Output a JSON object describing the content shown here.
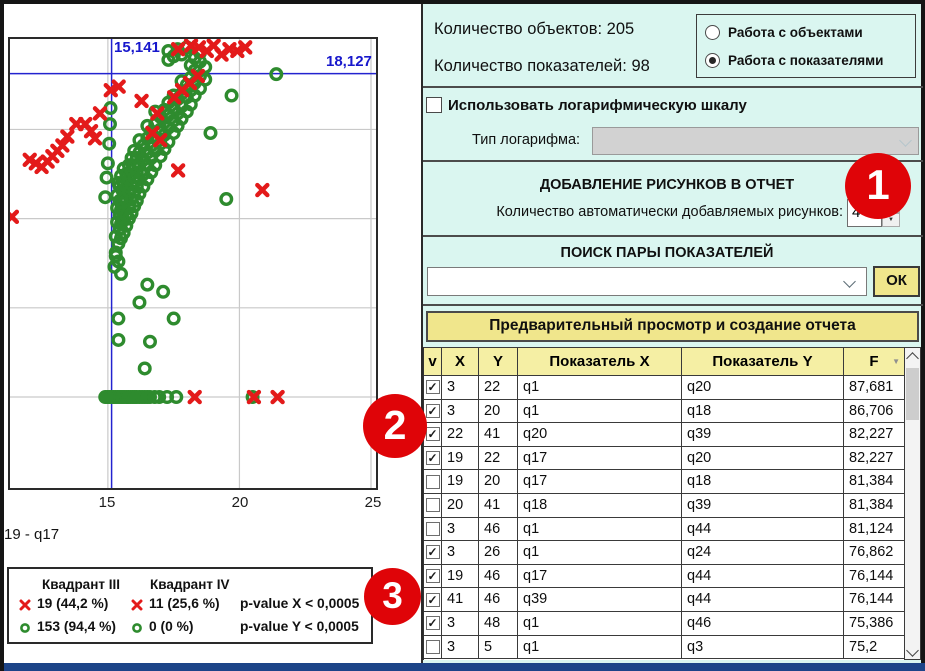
{
  "chart": {
    "crosshair_x_label": "15,141",
    "crosshair_y_label": "18,127",
    "x_tick_labels": [
      "15",
      "20",
      "25"
    ],
    "title": "19 - q17"
  },
  "chart_data": {
    "type": "scatter",
    "title": "19 - q17",
    "xlim": [
      11.28,
      25.19
    ],
    "ylim": [
      -5.1,
      20.07
    ],
    "x_ticks": [
      15,
      20,
      25
    ],
    "y_gridlines": [
      0,
      5,
      10,
      15
    ],
    "grid": true,
    "crosshair": {
      "x": 15.141,
      "y": 18.127
    },
    "colors": {
      "red": "#e31a1a",
      "green": "#2e8b2e",
      "crosshair": "#2323cf",
      "grid": "#c9c9c9"
    },
    "series": [
      {
        "name": "green-circles",
        "marker": "o",
        "color": "#2e8b2e",
        "points": [
          [
            15.25,
            7.3
          ],
          [
            15.3,
            8.1
          ],
          [
            15.3,
            9.0
          ],
          [
            15.35,
            9.8
          ],
          [
            15.35,
            10.6
          ],
          [
            15.35,
            11.3
          ],
          [
            15.4,
            7.6
          ],
          [
            15.4,
            8.6
          ],
          [
            15.4,
            12.0
          ],
          [
            15.45,
            9.4
          ],
          [
            15.45,
            10.2
          ],
          [
            15.45,
            11.0
          ],
          [
            15.45,
            11.8
          ],
          [
            15.5,
            8.9
          ],
          [
            15.5,
            9.7
          ],
          [
            15.5,
            10.5
          ],
          [
            15.5,
            12.4
          ],
          [
            15.55,
            10.0
          ],
          [
            15.55,
            10.9
          ],
          [
            15.55,
            11.6
          ],
          [
            15.6,
            9.2
          ],
          [
            15.6,
            10.4
          ],
          [
            15.6,
            11.2
          ],
          [
            15.6,
            12.0
          ],
          [
            15.6,
            12.8
          ],
          [
            15.7,
            9.6
          ],
          [
            15.7,
            10.2
          ],
          [
            15.7,
            11.0
          ],
          [
            15.7,
            11.8
          ],
          [
            15.7,
            12.5
          ],
          [
            15.8,
            10.0
          ],
          [
            15.8,
            10.7
          ],
          [
            15.8,
            11.5
          ],
          [
            15.8,
            12.2
          ],
          [
            15.8,
            13.0
          ],
          [
            15.9,
            10.3
          ],
          [
            15.9,
            11.1
          ],
          [
            15.9,
            11.9
          ],
          [
            15.9,
            12.7
          ],
          [
            15.9,
            13.4
          ],
          [
            16.0,
            10.7
          ],
          [
            16.0,
            11.5
          ],
          [
            16.0,
            12.3
          ],
          [
            16.0,
            13.0
          ],
          [
            16.0,
            13.8
          ],
          [
            16.1,
            11.0
          ],
          [
            16.1,
            11.8
          ],
          [
            16.1,
            12.6
          ],
          [
            16.1,
            13.4
          ],
          [
            16.2,
            11.4
          ],
          [
            16.2,
            12.2
          ],
          [
            16.2,
            13.0
          ],
          [
            16.2,
            13.7
          ],
          [
            16.2,
            14.4
          ],
          [
            16.35,
            11.8
          ],
          [
            16.35,
            12.5
          ],
          [
            16.35,
            13.3
          ],
          [
            16.35,
            14.1
          ],
          [
            16.5,
            12.2
          ],
          [
            16.5,
            13.0
          ],
          [
            16.5,
            13.7
          ],
          [
            16.5,
            14.5
          ],
          [
            16.5,
            15.2
          ],
          [
            16.65,
            12.6
          ],
          [
            16.65,
            13.4
          ],
          [
            16.65,
            14.1
          ],
          [
            16.65,
            14.9
          ],
          [
            16.8,
            13.0
          ],
          [
            16.8,
            13.8
          ],
          [
            16.8,
            14.5
          ],
          [
            16.8,
            15.3
          ],
          [
            16.8,
            16.0
          ],
          [
            17.0,
            13.5
          ],
          [
            17.0,
            14.2
          ],
          [
            17.0,
            15.0
          ],
          [
            17.0,
            15.7
          ],
          [
            17.15,
            13.9
          ],
          [
            17.15,
            14.7
          ],
          [
            17.15,
            15.4
          ],
          [
            17.15,
            16.1
          ],
          [
            17.3,
            14.3
          ],
          [
            17.3,
            15.1
          ],
          [
            17.3,
            15.8
          ],
          [
            17.3,
            16.5
          ],
          [
            17.3,
            18.9
          ],
          [
            17.3,
            19.4
          ],
          [
            17.5,
            14.8
          ],
          [
            17.5,
            15.5
          ],
          [
            17.5,
            16.2
          ],
          [
            17.5,
            16.9
          ],
          [
            17.5,
            19.1
          ],
          [
            17.65,
            15.2
          ],
          [
            17.65,
            15.9
          ],
          [
            17.65,
            16.7
          ],
          [
            17.65,
            19.5
          ],
          [
            17.8,
            15.6
          ],
          [
            17.8,
            16.3
          ],
          [
            17.8,
            17.0
          ],
          [
            17.8,
            17.7
          ],
          [
            17.8,
            19.2
          ],
          [
            18.0,
            16.0
          ],
          [
            18.0,
            16.8
          ],
          [
            18.0,
            17.5
          ],
          [
            18.0,
            19.6
          ],
          [
            18.15,
            16.4
          ],
          [
            18.15,
            17.2
          ],
          [
            18.15,
            17.9
          ],
          [
            18.15,
            18.6
          ],
          [
            18.3,
            16.9
          ],
          [
            18.3,
            17.6
          ],
          [
            18.3,
            18.3
          ],
          [
            18.3,
            19.0
          ],
          [
            18.5,
            17.3
          ],
          [
            18.5,
            18.0
          ],
          [
            18.5,
            18.8
          ],
          [
            18.5,
            19.3
          ],
          [
            18.7,
            17.8
          ],
          [
            18.7,
            18.5
          ],
          [
            18.9,
            14.8
          ],
          [
            19.5,
            11.1
          ],
          [
            19.7,
            16.9
          ],
          [
            21.4,
            18.1
          ],
          [
            14.95,
            12.3
          ],
          [
            15.0,
            13.1
          ],
          [
            15.05,
            14.2
          ],
          [
            14.9,
            11.2
          ],
          [
            15.08,
            15.3
          ],
          [
            15.1,
            16.2
          ],
          [
            15.3,
            7.9
          ],
          [
            15.5,
            6.9
          ],
          [
            16.5,
            6.3
          ],
          [
            17.1,
            5.9
          ],
          [
            16.2,
            5.3
          ],
          [
            15.4,
            4.4
          ],
          [
            17.5,
            4.4
          ],
          [
            16.6,
            3.1
          ],
          [
            15.4,
            3.2
          ],
          [
            16.4,
            1.6
          ],
          [
            14.9,
            0
          ],
          [
            14.98,
            0
          ],
          [
            15.06,
            0
          ],
          [
            15.14,
            0
          ],
          [
            15.22,
            0
          ],
          [
            15.3,
            0
          ],
          [
            15.38,
            0
          ],
          [
            15.46,
            0
          ],
          [
            15.54,
            0
          ],
          [
            15.62,
            0
          ],
          [
            15.7,
            0
          ],
          [
            15.78,
            0
          ],
          [
            15.86,
            0
          ],
          [
            15.94,
            0
          ],
          [
            16.02,
            0
          ],
          [
            16.1,
            0
          ],
          [
            16.2,
            0
          ],
          [
            16.3,
            0
          ],
          [
            16.4,
            0
          ],
          [
            16.5,
            0
          ],
          [
            16.6,
            0
          ],
          [
            16.78,
            0
          ],
          [
            16.95,
            0
          ],
          [
            17.25,
            0
          ],
          [
            17.6,
            0
          ],
          [
            20.5,
            0
          ]
        ]
      },
      {
        "name": "red-crosses",
        "marker": "x",
        "color": "#e31a1a",
        "points": [
          [
            12.03,
            13.3
          ],
          [
            12.26,
            13.1
          ],
          [
            12.48,
            12.9
          ],
          [
            12.71,
            13.2
          ],
          [
            12.89,
            13.5
          ],
          [
            13.08,
            13.8
          ],
          [
            13.27,
            14.1
          ],
          [
            13.46,
            14.6
          ],
          [
            13.8,
            15.3
          ],
          [
            14.14,
            15.3
          ],
          [
            14.36,
            14.9
          ],
          [
            14.51,
            14.5
          ],
          [
            14.7,
            15.9
          ],
          [
            11.35,
            10.1
          ],
          [
            15.11,
            17.2
          ],
          [
            15.41,
            17.4
          ],
          [
            16.28,
            16.6
          ],
          [
            16.88,
            15.9
          ],
          [
            17.52,
            16.8
          ],
          [
            17.82,
            17.2
          ],
          [
            18.12,
            17.6
          ],
          [
            18.42,
            18.0
          ],
          [
            17.67,
            19.5
          ],
          [
            18.16,
            19.7
          ],
          [
            18.46,
            19.6
          ],
          [
            18.76,
            19.4
          ],
          [
            19.02,
            19.7
          ],
          [
            19.32,
            19.2
          ],
          [
            19.62,
            19.5
          ],
          [
            19.92,
            19.4
          ],
          [
            20.22,
            19.6
          ],
          [
            16.69,
            14.8
          ],
          [
            16.99,
            14.4
          ],
          [
            17.67,
            12.7
          ],
          [
            20.87,
            11.6
          ],
          [
            18.3,
            0
          ],
          [
            20.55,
            0
          ],
          [
            21.45,
            0
          ]
        ]
      }
    ]
  },
  "legend": {
    "col1_header": "Квадрант III",
    "col2_header": "Квадрант IV",
    "rows": [
      {
        "marker": "x",
        "col1": "19 (44,2 %)",
        "col2": "11 (25,6 %)",
        "col3": "p-value X < 0,0005"
      },
      {
        "marker": "o",
        "col1": "153 (94,4 %)",
        "col2": "0 (0 %)",
        "col3": "p-value Y < 0,0005"
      }
    ]
  },
  "panel": {
    "objects_count_label": "Количество объектов: 205",
    "indicators_count_label": "Количество показателей: 98",
    "radio_objects_label": "Работа с объектами",
    "radio_indicators_label": "Работа с показателями",
    "radio_selected": "indicators",
    "log_checkbox_label": "Использовать логарифмическую шкалу",
    "log_checkbox_checked": false,
    "log_type_label": "Тип логарифма:",
    "log_type_value": "",
    "figures_heading": "ДОБАВЛЕНИЕ РИСУНКОВ В ОТЧЕТ",
    "figures_count_label": "Количество автоматически добавляемых рисунков:",
    "figures_count_value": "4",
    "search_heading": "ПОИСК ПАРЫ ПОКАЗАТЕЛЕЙ",
    "search_value": "",
    "ok_button_label": "ОК",
    "preview_button_label": "Предварительный просмотр и создание отчета"
  },
  "table": {
    "columns": [
      "v",
      "X",
      "Y",
      "Показатель X",
      "Показатель Y",
      "F"
    ],
    "sorted_column": "F",
    "rows": [
      {
        "checked": true,
        "x": "3",
        "y": "22",
        "ind_x": "q1",
        "ind_y": "q20",
        "f": "87,681"
      },
      {
        "checked": true,
        "x": "3",
        "y": "20",
        "ind_x": "q1",
        "ind_y": "q18",
        "f": "86,706"
      },
      {
        "checked": true,
        "x": "22",
        "y": "41",
        "ind_x": "q20",
        "ind_y": "q39",
        "f": "82,227"
      },
      {
        "checked": true,
        "x": "19",
        "y": "22",
        "ind_x": "q17",
        "ind_y": "q20",
        "f": "82,227"
      },
      {
        "checked": false,
        "x": "19",
        "y": "20",
        "ind_x": "q17",
        "ind_y": "q18",
        "f": "81,384"
      },
      {
        "checked": false,
        "x": "20",
        "y": "41",
        "ind_x": "q18",
        "ind_y": "q39",
        "f": "81,384"
      },
      {
        "checked": false,
        "x": "3",
        "y": "46",
        "ind_x": "q1",
        "ind_y": "q44",
        "f": "81,124"
      },
      {
        "checked": true,
        "x": "3",
        "y": "26",
        "ind_x": "q1",
        "ind_y": "q24",
        "f": "76,862"
      },
      {
        "checked": true,
        "x": "19",
        "y": "46",
        "ind_x": "q17",
        "ind_y": "q44",
        "f": "76,144"
      },
      {
        "checked": true,
        "x": "41",
        "y": "46",
        "ind_x": "q39",
        "ind_y": "q44",
        "f": "76,144"
      },
      {
        "checked": true,
        "x": "3",
        "y": "48",
        "ind_x": "q1",
        "ind_y": "q46",
        "f": "75,386"
      },
      {
        "checked": false,
        "x": "3",
        "y": "5",
        "ind_x": "q1",
        "ind_y": "q3",
        "f": "75,2"
      }
    ]
  },
  "annotations": {
    "badge1": "1",
    "badge2": "2",
    "badge3": "3"
  },
  "colors": {
    "panel_bg": "#daf6f0",
    "button_yellow": "#f0e68c",
    "table_header_yellow": "#f5efa4",
    "badge_red": "#df0408",
    "marker_red": "#e31a1a",
    "marker_green": "#2e8b2e",
    "crosshair_blue": "#2323cf",
    "bottom_strip": "#1d4488"
  }
}
